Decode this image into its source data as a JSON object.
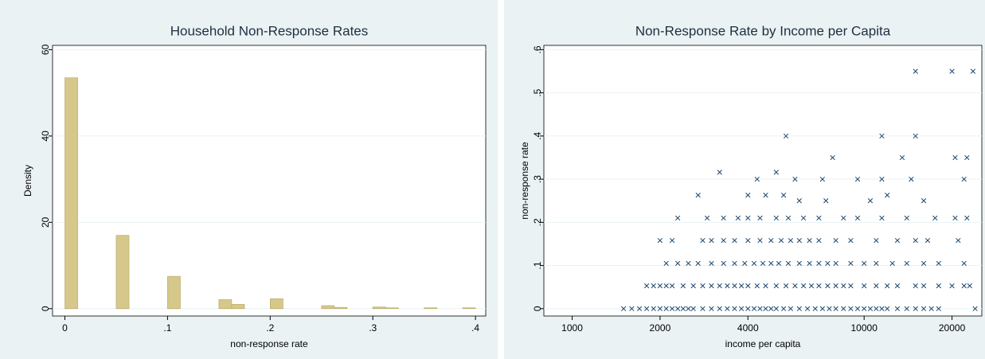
{
  "chart_data": [
    {
      "type": "histogram",
      "title": "Household Non-Response Rates",
      "xlabel": "non-response rate",
      "ylabel": "Density",
      "color": "#d5c88a",
      "edgecolor": "#b5a765",
      "grid": true,
      "bins": [
        0,
        0.0125,
        0.025,
        0.0375,
        0.05,
        0.0625,
        0.075,
        0.0875,
        0.1,
        0.1125,
        0.125,
        0.1375,
        0.15,
        0.1625,
        0.175,
        0.1875,
        0.2,
        0.2125,
        0.225,
        0.2375,
        0.25,
        0.2625,
        0.275,
        0.2875,
        0.3,
        0.3125,
        0.325,
        0.3375,
        0.35,
        0.3625,
        0.375,
        0.3875,
        0.4
      ],
      "values": [
        53.5,
        0,
        0,
        0,
        17,
        0,
        0,
        0,
        7.5,
        0,
        0,
        0,
        2.1,
        1,
        0,
        0,
        2.3,
        0,
        0,
        0,
        0.7,
        0.3,
        0,
        0,
        0.4,
        0.2,
        0,
        0,
        0.2,
        0,
        0,
        0.2
      ],
      "xlim": [
        -0.012,
        0.41
      ],
      "xticks": [
        0,
        {
          "value": 0.1,
          "label": ".1"
        },
        {
          "value": 0.2,
          "label": ".2"
        },
        {
          "value": 0.3,
          "label": ".3"
        },
        {
          "value": 0.4,
          "label": ".4"
        }
      ],
      "ylim": [
        -1.7,
        61
      ],
      "yticks": [
        0,
        20,
        40,
        60
      ]
    },
    {
      "type": "scatter",
      "title": "Non-Response Rate by Income per Capita",
      "xlabel": "income per capita",
      "ylabel": "non-response rate",
      "color": "#1a476f",
      "marker": "x",
      "grid": true,
      "xscale": "log",
      "x": [
        1500,
        1600,
        1700,
        1800,
        1900,
        2000,
        2100,
        2200,
        2300,
        2400,
        2500,
        2600,
        2800,
        3000,
        3200,
        3400,
        3600,
        3800,
        4000,
        4200,
        4400,
        4600,
        4800,
        5000,
        5300,
        5600,
        6000,
        6400,
        6800,
        7200,
        7600,
        8000,
        8500,
        9000,
        9500,
        10000,
        10500,
        11000,
        11500,
        12000,
        13000,
        14000,
        15000,
        16000,
        17000,
        18000,
        24000,
        1800,
        1900,
        2000,
        2100,
        2200,
        2400,
        2600,
        2800,
        3000,
        3200,
        3400,
        3600,
        3800,
        4000,
        4300,
        4600,
        5000,
        5400,
        5800,
        6200,
        6600,
        7000,
        7500,
        8000,
        8500,
        9000,
        10000,
        11000,
        12000,
        13000,
        15000,
        16000,
        18000,
        20000,
        22000,
        23000,
        2100,
        2300,
        2500,
        2700,
        3000,
        3300,
        3600,
        3900,
        4200,
        4500,
        4800,
        5100,
        5500,
        6000,
        6500,
        7000,
        7500,
        8000,
        9000,
        10000,
        11000,
        12500,
        14000,
        16000,
        18000,
        22000,
        2000,
        2200,
        2800,
        3000,
        3300,
        3600,
        4000,
        4400,
        4800,
        5200,
        5600,
        6000,
        6500,
        7000,
        8000,
        9000,
        11000,
        13000,
        15000,
        16500,
        21000,
        2300,
        2900,
        3300,
        3700,
        4000,
        4400,
        5000,
        5500,
        6200,
        7000,
        8500,
        9500,
        11500,
        14000,
        17500,
        20500,
        22500,
        2700,
        4000,
        4600,
        5300,
        6000,
        7400,
        10500,
        12000,
        16000,
        4300,
        5800,
        7200,
        9500,
        11500,
        14500,
        22000,
        3200,
        5000,
        7800,
        13500,
        20500,
        22500,
        5400,
        11500,
        15000,
        15000,
        20000,
        23600
      ],
      "y": [
        0,
        0,
        0,
        0,
        0,
        0,
        0,
        0,
        0,
        0,
        0,
        0,
        0,
        0,
        0,
        0,
        0,
        0,
        0,
        0,
        0,
        0,
        0,
        0,
        0,
        0,
        0,
        0,
        0,
        0,
        0,
        0,
        0,
        0,
        0,
        0,
        0,
        0,
        0,
        0,
        0,
        0,
        0,
        0,
        0,
        0,
        0,
        0.053,
        0.053,
        0.053,
        0.053,
        0.053,
        0.053,
        0.053,
        0.053,
        0.053,
        0.053,
        0.053,
        0.053,
        0.053,
        0.053,
        0.053,
        0.053,
        0.053,
        0.053,
        0.053,
        0.053,
        0.053,
        0.053,
        0.053,
        0.053,
        0.053,
        0.053,
        0.053,
        0.053,
        0.053,
        0.053,
        0.053,
        0.053,
        0.053,
        0.053,
        0.053,
        0.053,
        0.105,
        0.105,
        0.105,
        0.105,
        0.105,
        0.105,
        0.105,
        0.105,
        0.105,
        0.105,
        0.105,
        0.105,
        0.105,
        0.105,
        0.105,
        0.105,
        0.105,
        0.105,
        0.105,
        0.105,
        0.105,
        0.105,
        0.105,
        0.105,
        0.105,
        0.105,
        0.158,
        0.158,
        0.158,
        0.158,
        0.158,
        0.158,
        0.158,
        0.158,
        0.158,
        0.158,
        0.158,
        0.158,
        0.158,
        0.158,
        0.158,
        0.158,
        0.158,
        0.158,
        0.158,
        0.158,
        0.158,
        0.21,
        0.21,
        0.21,
        0.21,
        0.21,
        0.21,
        0.21,
        0.21,
        0.21,
        0.21,
        0.21,
        0.21,
        0.21,
        0.21,
        0.21,
        0.21,
        0.21,
        0.263,
        0.263,
        0.263,
        0.263,
        0.25,
        0.25,
        0.25,
        0.263,
        0.25,
        0.3,
        0.3,
        0.3,
        0.3,
        0.3,
        0.3,
        0.3,
        0.316,
        0.316,
        0.35,
        0.35,
        0.35,
        0.35,
        0.4,
        0.4,
        0.4,
        0.55,
        0.55,
        0.55
      ],
      "xlim": [
        800,
        25300
      ],
      "xticks": [
        1000,
        2000,
        4000,
        10000,
        20000
      ],
      "ylim": [
        -0.017,
        0.61
      ],
      "yticks": [
        0,
        {
          "value": 0.1,
          "label": ".1"
        },
        {
          "value": 0.2,
          "label": ".2"
        },
        {
          "value": 0.3,
          "label": ".3"
        },
        {
          "value": 0.4,
          "label": ".4"
        },
        {
          "value": 0.5,
          "label": ".5"
        },
        {
          "value": 0.6,
          "label": ".6"
        }
      ]
    }
  ]
}
